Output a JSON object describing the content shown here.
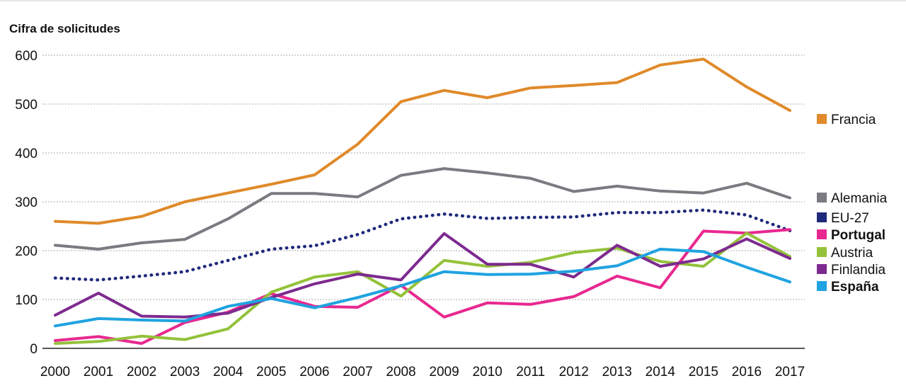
{
  "chart_data": {
    "type": "line",
    "ylabel": "Cifra de solicitudes",
    "ylim": [
      0,
      600
    ],
    "yticks": [
      "0",
      "100",
      "200",
      "300",
      "400",
      "500",
      "600"
    ],
    "grid": true,
    "legend": "right",
    "x": [
      "2000",
      "2001",
      "2002",
      "2003",
      "2004",
      "2005",
      "2006",
      "2007",
      "2008",
      "2009",
      "2010",
      "2011",
      "2012",
      "2013",
      "2014",
      "2015",
      "2016",
      "2017"
    ],
    "series": [
      {
        "name": "Francia",
        "color": "#e08a2a",
        "dashed": false,
        "bold": false,
        "values": [
          260,
          256,
          270,
          300,
          318,
          336,
          355,
          418,
          505,
          528,
          513,
          533,
          538,
          544,
          580,
          592,
          535,
          487
        ]
      },
      {
        "name": "Alemania",
        "color": "#7a7a80",
        "dashed": false,
        "bold": false,
        "values": [
          211,
          203,
          216,
          223,
          265,
          317,
          317,
          310,
          354,
          368,
          359,
          348,
          321,
          332,
          322,
          318,
          338,
          308
        ]
      },
      {
        "name": "EU-27",
        "color": "#1f2a7a",
        "dashed": true,
        "bold": false,
        "values": [
          144,
          140,
          148,
          157,
          180,
          203,
          210,
          233,
          265,
          275,
          266,
          268,
          269,
          278,
          278,
          283,
          273,
          241
        ]
      },
      {
        "name": "Portugal",
        "color": "#e8288f",
        "dashed": false,
        "bold": true,
        "values": [
          16,
          24,
          10,
          53,
          74,
          112,
          86,
          84,
          129,
          64,
          93,
          90,
          106,
          148,
          124,
          240,
          236,
          243
        ]
      },
      {
        "name": "Austria",
        "color": "#93c23a",
        "dashed": false,
        "bold": false,
        "values": [
          10,
          14,
          25,
          18,
          40,
          115,
          146,
          157,
          107,
          180,
          168,
          176,
          196,
          205,
          178,
          168,
          236,
          188
        ]
      },
      {
        "name": "Finlandia",
        "color": "#7d2a8f",
        "dashed": false,
        "bold": false,
        "values": [
          68,
          113,
          66,
          64,
          72,
          104,
          132,
          152,
          140,
          235,
          172,
          172,
          146,
          211,
          168,
          183,
          224,
          184
        ]
      },
      {
        "name": "España",
        "color": "#1fa3e0",
        "dashed": false,
        "bold": true,
        "values": [
          46,
          61,
          58,
          56,
          86,
          102,
          83,
          104,
          128,
          157,
          151,
          152,
          158,
          169,
          203,
          198,
          166,
          136
        ]
      }
    ]
  }
}
